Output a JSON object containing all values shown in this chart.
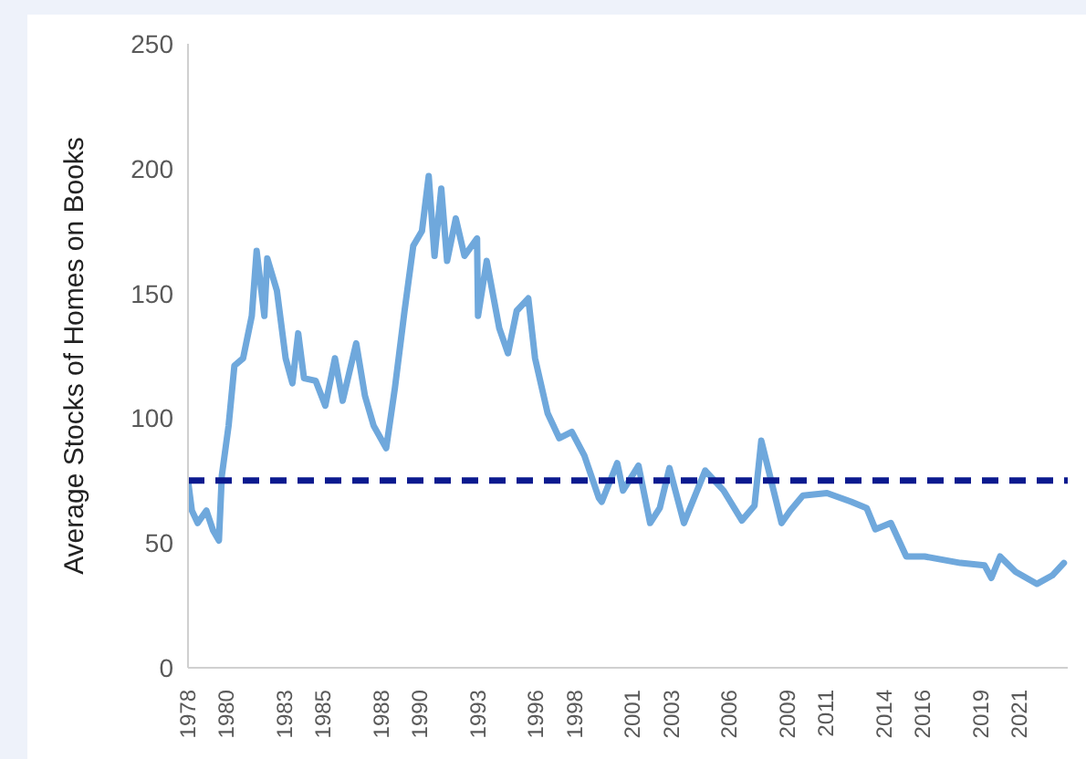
{
  "chart_data": {
    "type": "line",
    "ylabel": "Average Stocks of Homes on Books",
    "xlim": [
      1978,
      2023.5
    ],
    "xticks": [
      1978,
      1980,
      1983,
      1985,
      1988,
      1990,
      1993,
      1996,
      1998,
      2001,
      2003,
      2006,
      2009,
      2011,
      2014,
      2016,
      2019,
      2021
    ],
    "ylim": [
      0,
      250
    ],
    "yticks": [
      0,
      50,
      100,
      150,
      200,
      250
    ],
    "grid": false,
    "legend": false,
    "marker": "none",
    "line_style": "solid",
    "series": [
      {
        "color": "#6fa8dc",
        "x": [
          1978.0,
          1978.2,
          1978.5,
          1978.95,
          1979.3,
          1979.6,
          1979.75,
          1980.1,
          1980.4,
          1980.85,
          1981.3,
          1981.55,
          1981.95,
          1982.1,
          1982.6,
          1983.05,
          1983.4,
          1983.7,
          1984.0,
          1984.6,
          1985.1,
          1985.6,
          1986.0,
          1986.7,
          1987.15,
          1987.6,
          1988.25,
          1988.7,
          1989.2,
          1989.65,
          1990.1,
          1990.45,
          1990.75,
          1991.1,
          1991.4,
          1991.85,
          1992.3,
          1992.95,
          1993.0,
          1993.45,
          1994.1,
          1994.55,
          1995.0,
          1995.6,
          1995.95,
          1996.6,
          1997.2,
          1997.85,
          1998.5,
          1999.25,
          1999.4,
          2000.2,
          2000.5,
          2001.3,
          2001.9,
          2002.4,
          2002.9,
          2003.65,
          2004.75,
          2005.7,
          2006.65,
          2007.3,
          2007.65,
          2008.7,
          2009.15,
          2009.8,
          2011.05,
          2012.3,
          2013.1,
          2013.55,
          2014.35,
          2015.15,
          2016.1,
          2017.95,
          2019.2,
          2019.55,
          2020.0,
          2020.8,
          2021.9,
          2022.7,
          2023.3
        ],
        "values": [
          75,
          63,
          58,
          63,
          55,
          51,
          77,
          97,
          121,
          124,
          141,
          167,
          141,
          164,
          151,
          124,
          114,
          134,
          116,
          115,
          105,
          124,
          107,
          130,
          109,
          97,
          88,
          112,
          143,
          169,
          175,
          197,
          165,
          192,
          163,
          180,
          165,
          172,
          141,
          163,
          136,
          126,
          143,
          148,
          124,
          102,
          92,
          94.5,
          85,
          68,
          66.5,
          82,
          71,
          81,
          58,
          64,
          80,
          58,
          79,
          71,
          59,
          65,
          91,
          58,
          63,
          69,
          70,
          66.5,
          64,
          55.5,
          58,
          44.6,
          44.6,
          42,
          41,
          36,
          44.6,
          38.5,
          33.6,
          37,
          42
        ]
      }
    ],
    "ref_lines": [
      {
        "axis": "y",
        "value": 75,
        "color": "#0b1a8f",
        "line_style": "dashed"
      }
    ]
  }
}
